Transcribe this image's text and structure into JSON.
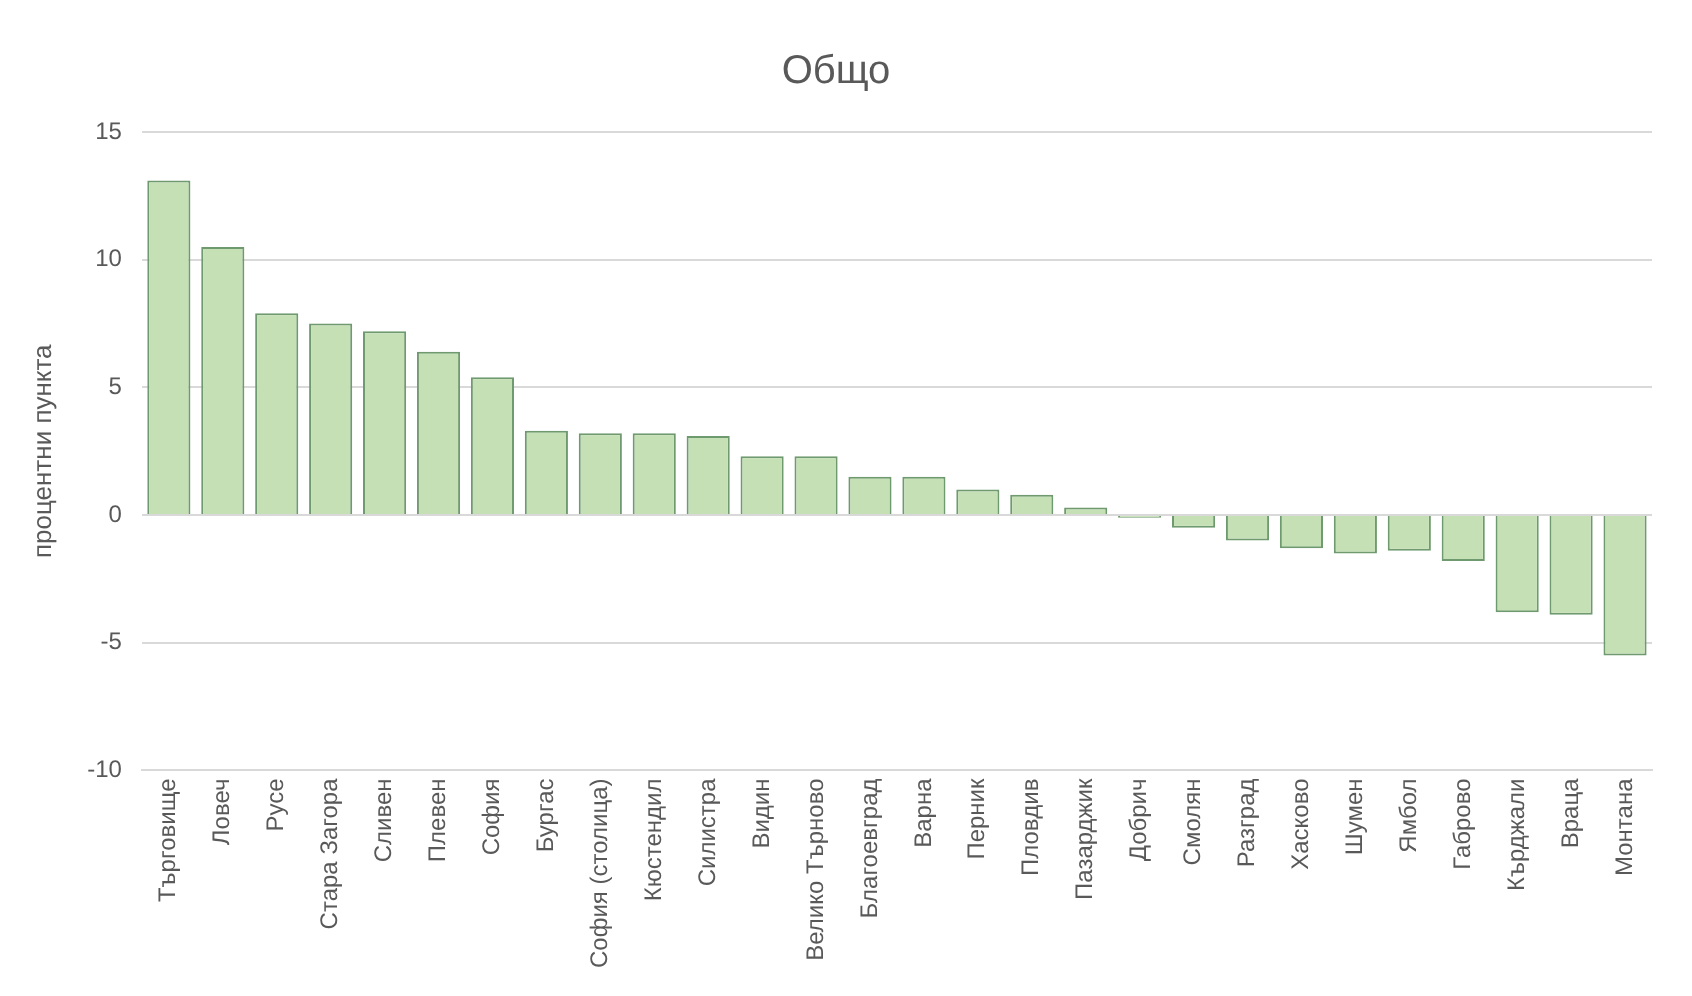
{
  "chart_data": {
    "type": "bar",
    "title": "Общо",
    "ylabel": "процентни пункта",
    "categories": [
      "Търговище",
      "Ловеч",
      "Русе",
      "Стара Загора",
      "Сливен",
      "Плевен",
      "София",
      "Бургас",
      "София (столица)",
      "Кюстендил",
      "Силистра",
      "Видин",
      "Велико Търново",
      "Благоевград",
      "Варна",
      "Перник",
      "Пловдив",
      "Пазарджик",
      "Добрич",
      "Смолян",
      "Разград",
      "Хасково",
      "Шумен",
      "Ямбол",
      "Габрово",
      "Кърджали",
      "Враца",
      "Монтана"
    ],
    "values": [
      13.1,
      10.5,
      7.9,
      7.5,
      7.2,
      6.4,
      5.4,
      3.3,
      3.2,
      3.2,
      3.1,
      2.3,
      2.3,
      1.5,
      1.5,
      1.0,
      0.8,
      0.3,
      -0.1,
      -0.5,
      -1.0,
      -1.3,
      -1.5,
      -1.4,
      -1.8,
      -3.8,
      -3.9,
      -5.5
    ],
    "color": "#c5e0b4",
    "ylim": [
      -10,
      15
    ],
    "yticks": [
      -10,
      -5,
      0,
      5,
      10,
      15
    ],
    "grid": "y",
    "legend": false
  }
}
